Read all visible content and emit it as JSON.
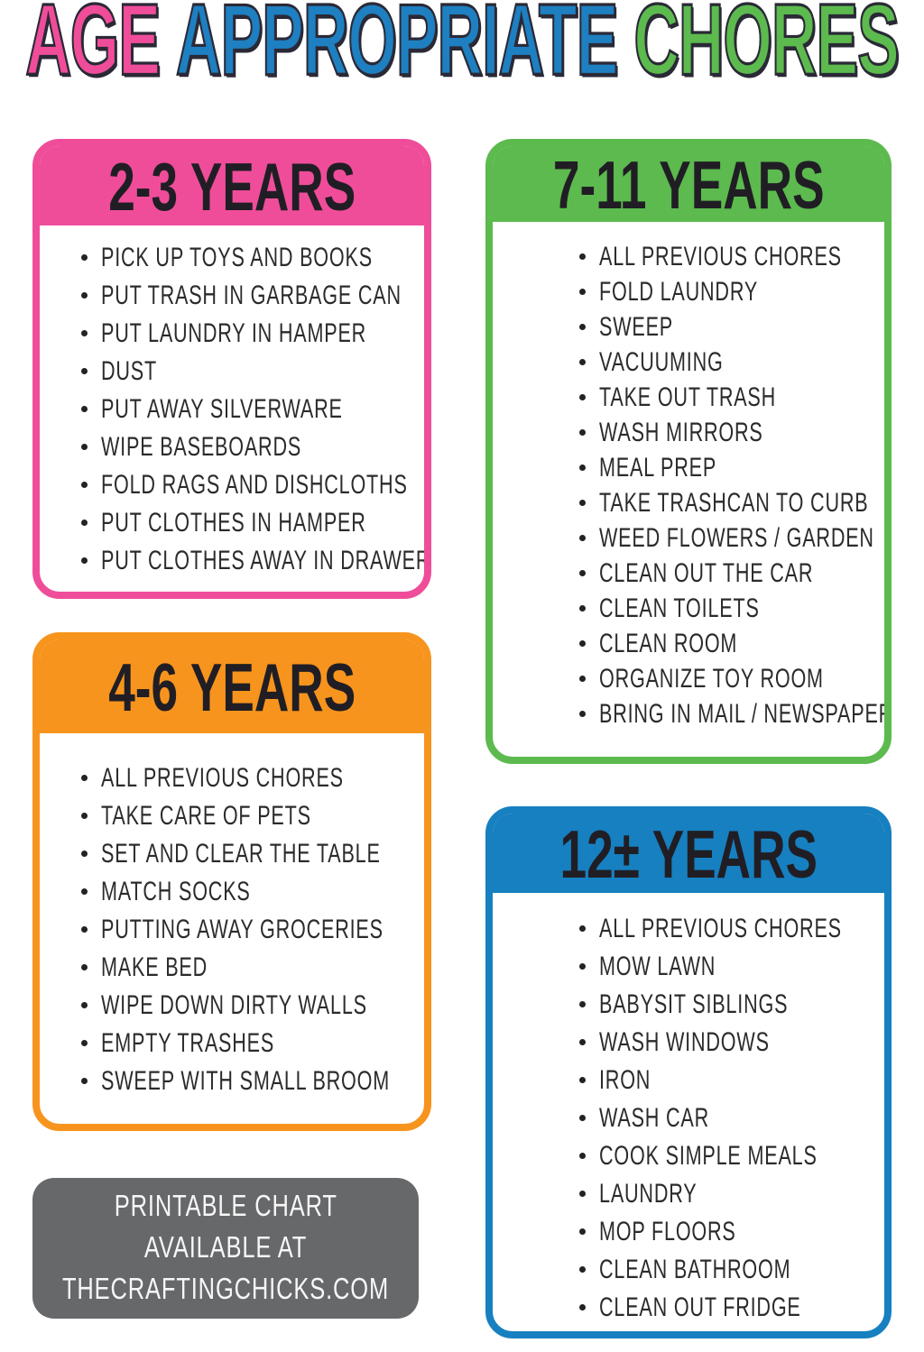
{
  "title": {
    "words": [
      {
        "text": "AGE",
        "color": "#ef4d9a"
      },
      {
        "text": "APPROPRIATE",
        "color": "#1e7fc1"
      },
      {
        "text": "CHORES",
        "color": "#5cba4e"
      }
    ],
    "outline_color": "#2a2936"
  },
  "cards": [
    {
      "label": "2-3 YEARS",
      "color": "#ef4d9a",
      "items": [
        "PICK UP TOYS AND BOOKS",
        "PUT TRASH IN GARBAGE CAN",
        "PUT LAUNDRY IN HAMPER",
        "DUST",
        "PUT AWAY SILVERWARE",
        "WIPE BASEBOARDS",
        "FOLD RAGS AND DISHCLOTHS",
        "PUT CLOTHES IN HAMPER",
        "PUT CLOTHES AWAY IN DRAWERS"
      ]
    },
    {
      "label": "7-11 YEARS",
      "color": "#5cba4e",
      "items": [
        "ALL PREVIOUS CHORES",
        "FOLD LAUNDRY",
        "SWEEP",
        "VACUUMING",
        "TAKE OUT TRASH",
        "WASH MIRRORS",
        "MEAL PREP",
        "TAKE TRASHCAN TO CURB",
        "WEED FLOWERS / GARDEN",
        "CLEAN OUT THE CAR",
        "CLEAN TOILETS",
        "CLEAN ROOM",
        "ORGANIZE TOY ROOM",
        "BRING IN MAIL / NEWSPAPER"
      ]
    },
    {
      "label": "4-6 YEARS",
      "color": "#f7941e",
      "items": [
        "ALL PREVIOUS CHORES",
        "TAKE CARE OF PETS",
        "SET AND CLEAR THE TABLE",
        "MATCH SOCKS",
        "PUTTING AWAY GROCERIES",
        "MAKE BED",
        "WIPE DOWN DIRTY WALLS",
        "EMPTY TRASHES",
        "SWEEP WITH SMALL BROOM"
      ]
    },
    {
      "label": "12± YEARS",
      "color": "#1680c0",
      "items": [
        "ALL PREVIOUS CHORES",
        "MOW LAWN",
        "BABYSIT SIBLINGS",
        "WASH WINDOWS",
        "IRON",
        "WASH CAR",
        "COOK SIMPLE MEALS",
        "LAUNDRY",
        "MOP FLOORS",
        "CLEAN BATHROOM",
        "CLEAN OUT FRIDGE"
      ]
    }
  ],
  "footer": {
    "color": "#67686a",
    "lines": [
      "PRINTABLE CHART",
      "AVAILABLE AT",
      "THECRAFTINGCHICKS.COM"
    ]
  }
}
